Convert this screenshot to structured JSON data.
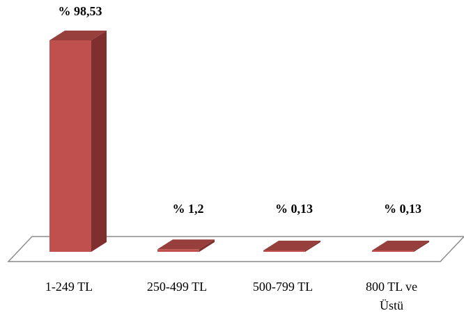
{
  "chart_data": {
    "type": "bar",
    "style": "3d-column",
    "categories": [
      "1-249 TL",
      "250-499 TL",
      "500-799 TL",
      "800 TL ve Üstü"
    ],
    "category_lines": [
      [
        "1-249 TL"
      ],
      [
        "250-499 TL"
      ],
      [
        "500-799 TL"
      ],
      [
        "800 TL ve",
        "Üstü"
      ]
    ],
    "values": [
      98.53,
      1.2,
      0.13,
      0.13
    ],
    "data_labels": [
      "% 98,53",
      "% 1,2",
      "% 0,13",
      "% 0,13"
    ],
    "ylim": [
      0,
      100
    ],
    "grid": false,
    "legend": "none",
    "colors": {
      "front": "#c0504d",
      "side": "#7f2f2d",
      "top": "#963f3c",
      "floor_stroke": "#8c8c8c"
    }
  }
}
